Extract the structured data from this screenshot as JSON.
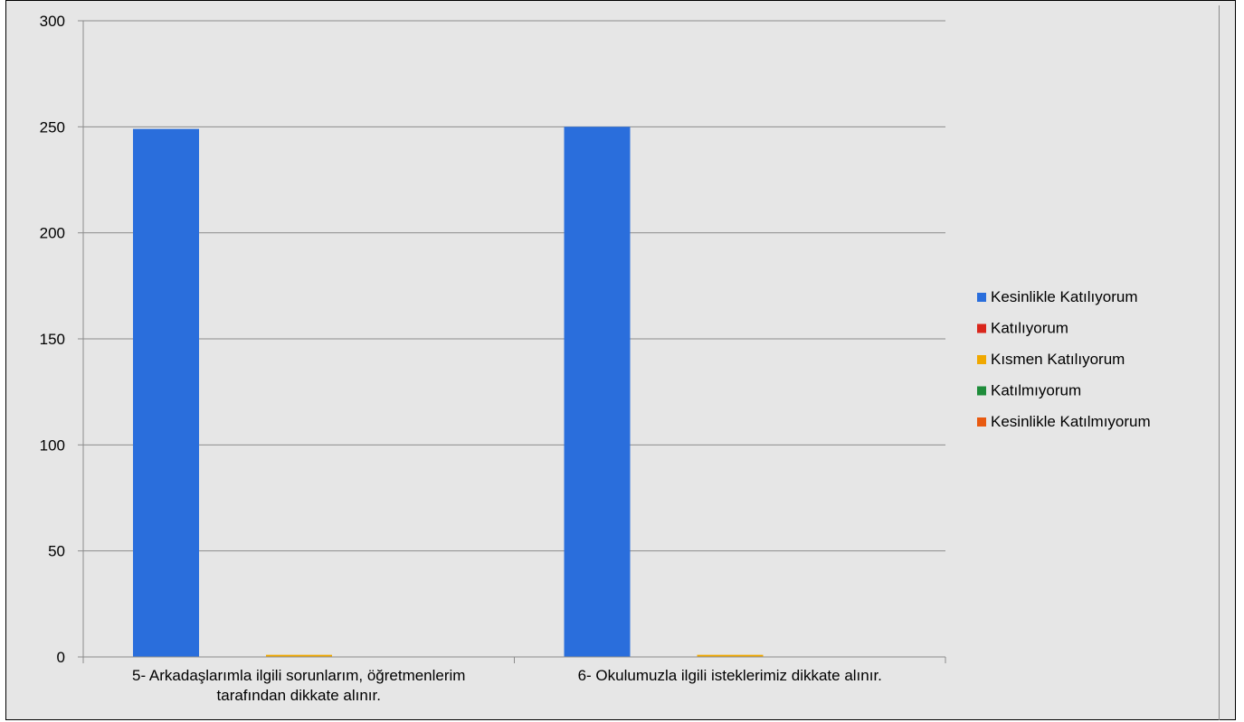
{
  "chart_data": {
    "type": "bar",
    "categories": [
      [
        "5- Arkadaşlarımla ilgili sorunlarım, öğretmenlerim",
        "tarafından dikkate alınır."
      ],
      [
        "6- Okulumuzla ilgili isteklerimiz dikkate alınır."
      ]
    ],
    "series": [
      {
        "name": "Kesinlikle Katılıyorum",
        "color": "#2a6edc",
        "values": [
          249,
          250
        ]
      },
      {
        "name": "Katılıyorum",
        "color": "#d9261c",
        "values": [
          0,
          0
        ]
      },
      {
        "name": "Kısmen Katılıyorum",
        "color": "#f0a800",
        "values": [
          1,
          1
        ]
      },
      {
        "name": "Katılmıyorum",
        "color": "#1e8c3a",
        "values": [
          0,
          0
        ]
      },
      {
        "name": "Kesinlikle Katılmıyorum",
        "color": "#e85a10",
        "values": [
          0,
          0
        ]
      }
    ],
    "yticks": [
      "0",
      "50",
      "100",
      "150",
      "200",
      "250",
      "300"
    ],
    "ylim": [
      0,
      300
    ],
    "grid": true,
    "legend": "right"
  }
}
